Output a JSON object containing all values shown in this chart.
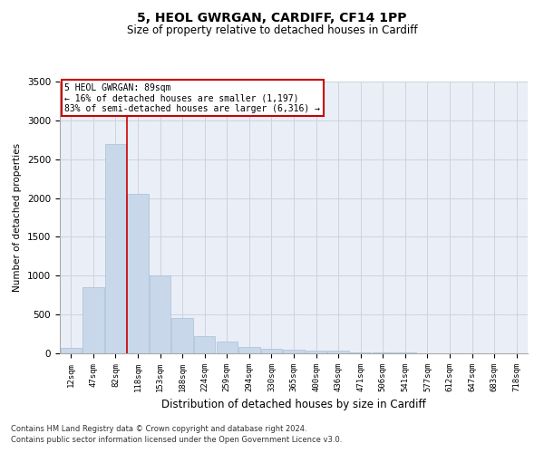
{
  "title": "5, HEOL GWRGAN, CARDIFF, CF14 1PP",
  "subtitle": "Size of property relative to detached houses in Cardiff",
  "xlabel": "Distribution of detached houses by size in Cardiff",
  "ylabel": "Number of detached properties",
  "categories": [
    "12sqm",
    "47sqm",
    "82sqm",
    "118sqm",
    "153sqm",
    "188sqm",
    "224sqm",
    "259sqm",
    "294sqm",
    "330sqm",
    "365sqm",
    "400sqm",
    "436sqm",
    "471sqm",
    "506sqm",
    "541sqm",
    "577sqm",
    "612sqm",
    "647sqm",
    "683sqm",
    "718sqm"
  ],
  "values": [
    75,
    850,
    2700,
    2050,
    1000,
    450,
    220,
    150,
    80,
    60,
    50,
    40,
    30,
    15,
    10,
    8,
    5,
    5,
    4,
    3,
    3
  ],
  "bar_color": "#c8d8ea",
  "bar_edge_color": "#a8c0d4",
  "red_line_x": 2.5,
  "annotation_title": "5 HEOL GWRGAN: 89sqm",
  "annotation_line1": "← 16% of detached houses are smaller (1,197)",
  "annotation_line2": "83% of semi-detached houses are larger (6,316) →",
  "annotation_box_color": "#ffffff",
  "annotation_box_edge": "#cc0000",
  "ylim": [
    0,
    3500
  ],
  "yticks": [
    0,
    500,
    1000,
    1500,
    2000,
    2500,
    3000,
    3500
  ],
  "grid_color": "#ccd4e0",
  "background_color": "#eaeff7",
  "footnote1": "Contains HM Land Registry data © Crown copyright and database right 2024.",
  "footnote2": "Contains public sector information licensed under the Open Government Licence v3.0."
}
